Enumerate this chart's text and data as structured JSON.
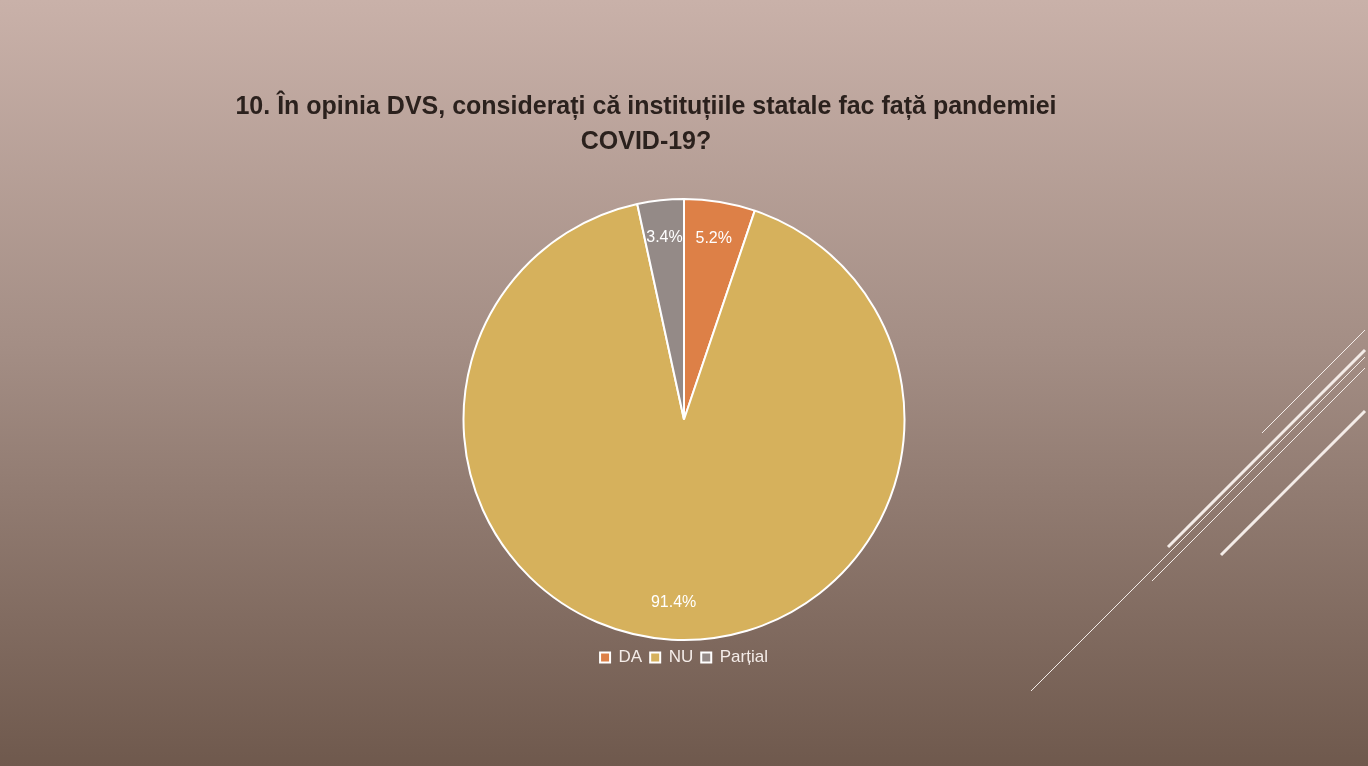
{
  "chart_data": {
    "type": "pie",
    "title": "10. În opinia DVS, considerați că instituțiile statale fac față pandemiei COVID-19?",
    "categories": [
      "DA",
      "NU",
      "Parțial"
    ],
    "values": [
      5.2,
      91.4,
      3.4
    ],
    "value_labels": [
      "5.2%",
      "91.4%",
      "3.4%"
    ],
    "colors": [
      "#dd8047",
      "#d6b15c",
      "#948a87"
    ],
    "legend": "bottom"
  }
}
